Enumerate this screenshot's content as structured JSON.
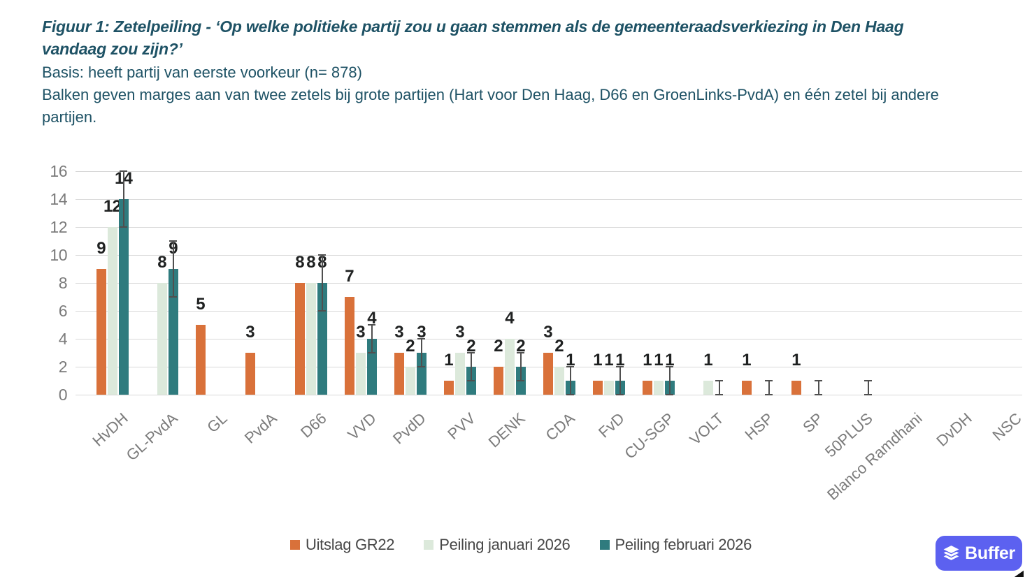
{
  "header": {
    "title": "Figuur 1: Zetelpeiling - ‘Op welke politieke partij zou u gaan stemmen als de gemeenteraadsverkiezing in Den Haag vandaag zou zijn?’",
    "basis": "Basis: heeft partij van eerste voorkeur (n= 878)",
    "note": "Balken geven marges aan van twee zetels bij grote partijen (Hart voor Den Haag, D66 en GroenLinks-PvdA) en één zetel bij andere partijen."
  },
  "chart_data": {
    "type": "bar",
    "title": "Figuur 1: Zetelpeiling - ‘Op welke politieke partij zou u gaan stemmen als de gemeenteraadsverkiezing in Den Haag vandaag zou zijn?’",
    "categories": [
      "HvDH",
      "GL-PvdA",
      "GL",
      "PvdA",
      "D66",
      "VVD",
      "PvdD",
      "PVV",
      "DENK",
      "CDA",
      "FvD",
      "CU-SGP",
      "VOLT",
      "HSP",
      "SP",
      "50PLUS",
      "Blanco Ramdhani",
      "DvDH",
      "NSC"
    ],
    "series": [
      {
        "name": "Uitslag GR22",
        "color": "#D9713A",
        "values": [
          9,
          0,
          5,
          3,
          8,
          7,
          3,
          1,
          2,
          3,
          1,
          1,
          0,
          1,
          1,
          0,
          0,
          0,
          0
        ]
      },
      {
        "name": "Peiling januari 2026",
        "color": "#DCE9DB",
        "values": [
          12,
          8,
          0,
          0,
          8,
          3,
          2,
          3,
          4,
          2,
          1,
          1,
          1,
          0,
          0,
          0,
          0,
          0,
          0
        ]
      },
      {
        "name": "Peiling februari 2026",
        "color": "#2F7B7E",
        "values": [
          14,
          9,
          0,
          0,
          8,
          4,
          3,
          2,
          2,
          1,
          1,
          1,
          0,
          0,
          0,
          0,
          0,
          0,
          0
        ],
        "error_margin": [
          2,
          2,
          0,
          0,
          2,
          1,
          1,
          1,
          1,
          1,
          1,
          1,
          1,
          1,
          1,
          1,
          0,
          0,
          0
        ]
      }
    ],
    "xlabel": "",
    "ylabel": "",
    "ylim": [
      0,
      16
    ],
    "yticks": [
      0,
      2,
      4,
      6,
      8,
      10,
      12,
      14,
      16
    ],
    "grid": true,
    "legend_position": "bottom",
    "bar_value_labels": true
  },
  "branding": {
    "buffer_label": "Buffer",
    "buffer_color": "#5C61F0"
  }
}
